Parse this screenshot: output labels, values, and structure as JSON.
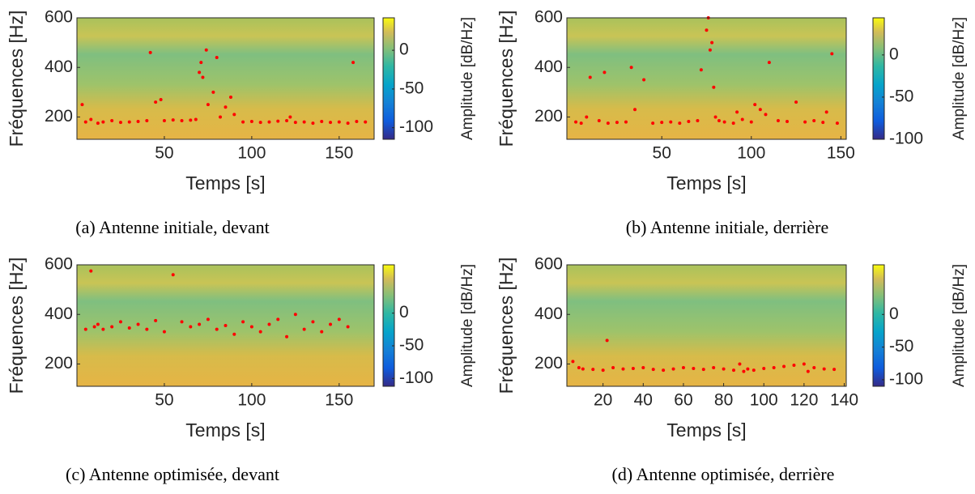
{
  "chart_data": [
    {
      "type": "scatter",
      "caption": "(a) Antenne initiale, devant",
      "xlabel": "Temps [s]",
      "ylabel": "Fréquences [Hz]",
      "colorbar_label": "Amplitude [dB/Hz]",
      "xlim": [
        0,
        170
      ],
      "xticks": [
        50,
        100,
        150
      ],
      "ylim": [
        110,
        600
      ],
      "yticks": [
        200,
        400,
        600
      ],
      "clim": [
        -115,
        42
      ],
      "cticks": [
        0,
        -50,
        -100
      ],
      "x": [
        3,
        5,
        8,
        12,
        15,
        20,
        25,
        30,
        35,
        40,
        42,
        45,
        48,
        50,
        55,
        60,
        65,
        68,
        70,
        71,
        72,
        74,
        75,
        78,
        80,
        82,
        85,
        88,
        90,
        95,
        100,
        105,
        110,
        115,
        120,
        122,
        125,
        130,
        135,
        140,
        145,
        150,
        155,
        158,
        160,
        165
      ],
      "series": [
        {
          "color": "#ff0000",
          "values": [
            250,
            180,
            190,
            175,
            180,
            185,
            178,
            180,
            182,
            185,
            460,
            260,
            270,
            185,
            188,
            185,
            187,
            190,
            380,
            420,
            360,
            470,
            250,
            300,
            440,
            200,
            240,
            280,
            210,
            180,
            182,
            178,
            180,
            183,
            185,
            200,
            178,
            180,
            175,
            182,
            178,
            180,
            175,
            420,
            182,
            180
          ]
        }
      ]
    },
    {
      "type": "scatter",
      "caption": "(b) Antenne initiale, derrière",
      "xlabel": "Temps [s]",
      "ylabel": "Fréquences [Hz]",
      "colorbar_label": "Amplitude [dB/Hz]",
      "xlim": [
        -3,
        153
      ],
      "xticks": [
        50,
        100,
        150
      ],
      "ylim": [
        110,
        600
      ],
      "yticks": [
        200,
        400,
        600
      ],
      "clim": [
        -100,
        44
      ],
      "cticks": [
        0,
        -50,
        -100
      ],
      "x": [
        2,
        5,
        8,
        10,
        15,
        18,
        20,
        25,
        30,
        33,
        35,
        40,
        45,
        50,
        55,
        60,
        65,
        70,
        72,
        75,
        76,
        77,
        78,
        79,
        80,
        82,
        85,
        90,
        92,
        95,
        100,
        102,
        105,
        108,
        110,
        115,
        120,
        125,
        130,
        135,
        140,
        142,
        145,
        148
      ],
      "series": [
        {
          "color": "#ff0000",
          "values": [
            180,
            175,
            200,
            360,
            185,
            380,
            175,
            178,
            180,
            400,
            230,
            350,
            175,
            178,
            180,
            175,
            182,
            185,
            390,
            550,
            600,
            470,
            500,
            320,
            200,
            185,
            180,
            175,
            220,
            190,
            180,
            250,
            230,
            210,
            420,
            185,
            182,
            260,
            180,
            185,
            178,
            220,
            455,
            175
          ]
        }
      ]
    },
    {
      "type": "scatter",
      "caption": "(c) Antenne optimisée, devant",
      "xlabel": "Temps [s]",
      "ylabel": "Fréquences [Hz]",
      "colorbar_label": "Amplitude [dB/Hz]",
      "xlim": [
        0,
        170
      ],
      "xticks": [
        50,
        100,
        150
      ],
      "ylim": [
        110,
        600
      ],
      "yticks": [
        200,
        400,
        600
      ],
      "clim": [
        -112,
        74
      ],
      "cticks": [
        0,
        -50,
        -100
      ],
      "x": [
        5,
        8,
        10,
        12,
        15,
        20,
        25,
        30,
        35,
        40,
        45,
        50,
        55,
        60,
        65,
        70,
        75,
        80,
        85,
        90,
        95,
        100,
        105,
        110,
        115,
        120,
        125,
        130,
        135,
        140,
        145,
        150,
        155
      ],
      "series": [
        {
          "color": "#ff0000",
          "values": [
            340,
            575,
            350,
            360,
            340,
            350,
            370,
            345,
            360,
            340,
            375,
            330,
            560,
            370,
            350,
            360,
            380,
            340,
            355,
            320,
            370,
            350,
            330,
            360,
            380,
            310,
            400,
            340,
            370,
            330,
            360,
            380,
            350
          ]
        }
      ]
    },
    {
      "type": "scatter",
      "caption": "(d) Antenne optimisée, derrière",
      "xlabel": "Temps [s]",
      "ylabel": "Fréquences [Hz]",
      "colorbar_label": "Amplitude [dB/Hz]",
      "xlim": [
        2,
        141
      ],
      "xticks": [
        20,
        40,
        60,
        80,
        100,
        120,
        140
      ],
      "ylim": [
        110,
        600
      ],
      "yticks": [
        200,
        400,
        600
      ],
      "clim": [
        -110,
        76
      ],
      "cticks": [
        0,
        -50,
        -100
      ],
      "x": [
        5,
        8,
        10,
        15,
        20,
        22,
        25,
        30,
        35,
        40,
        45,
        50,
        55,
        60,
        65,
        70,
        75,
        80,
        85,
        88,
        90,
        92,
        95,
        100,
        105,
        110,
        115,
        120,
        122,
        125,
        130,
        135
      ],
      "series": [
        {
          "color": "#ff0000",
          "values": [
            210,
            185,
            180,
            178,
            175,
            295,
            185,
            180,
            182,
            185,
            178,
            175,
            180,
            185,
            182,
            178,
            185,
            180,
            175,
            200,
            170,
            180,
            175,
            182,
            185,
            190,
            195,
            200,
            170,
            185,
            180,
            178
          ]
        }
      ]
    }
  ]
}
